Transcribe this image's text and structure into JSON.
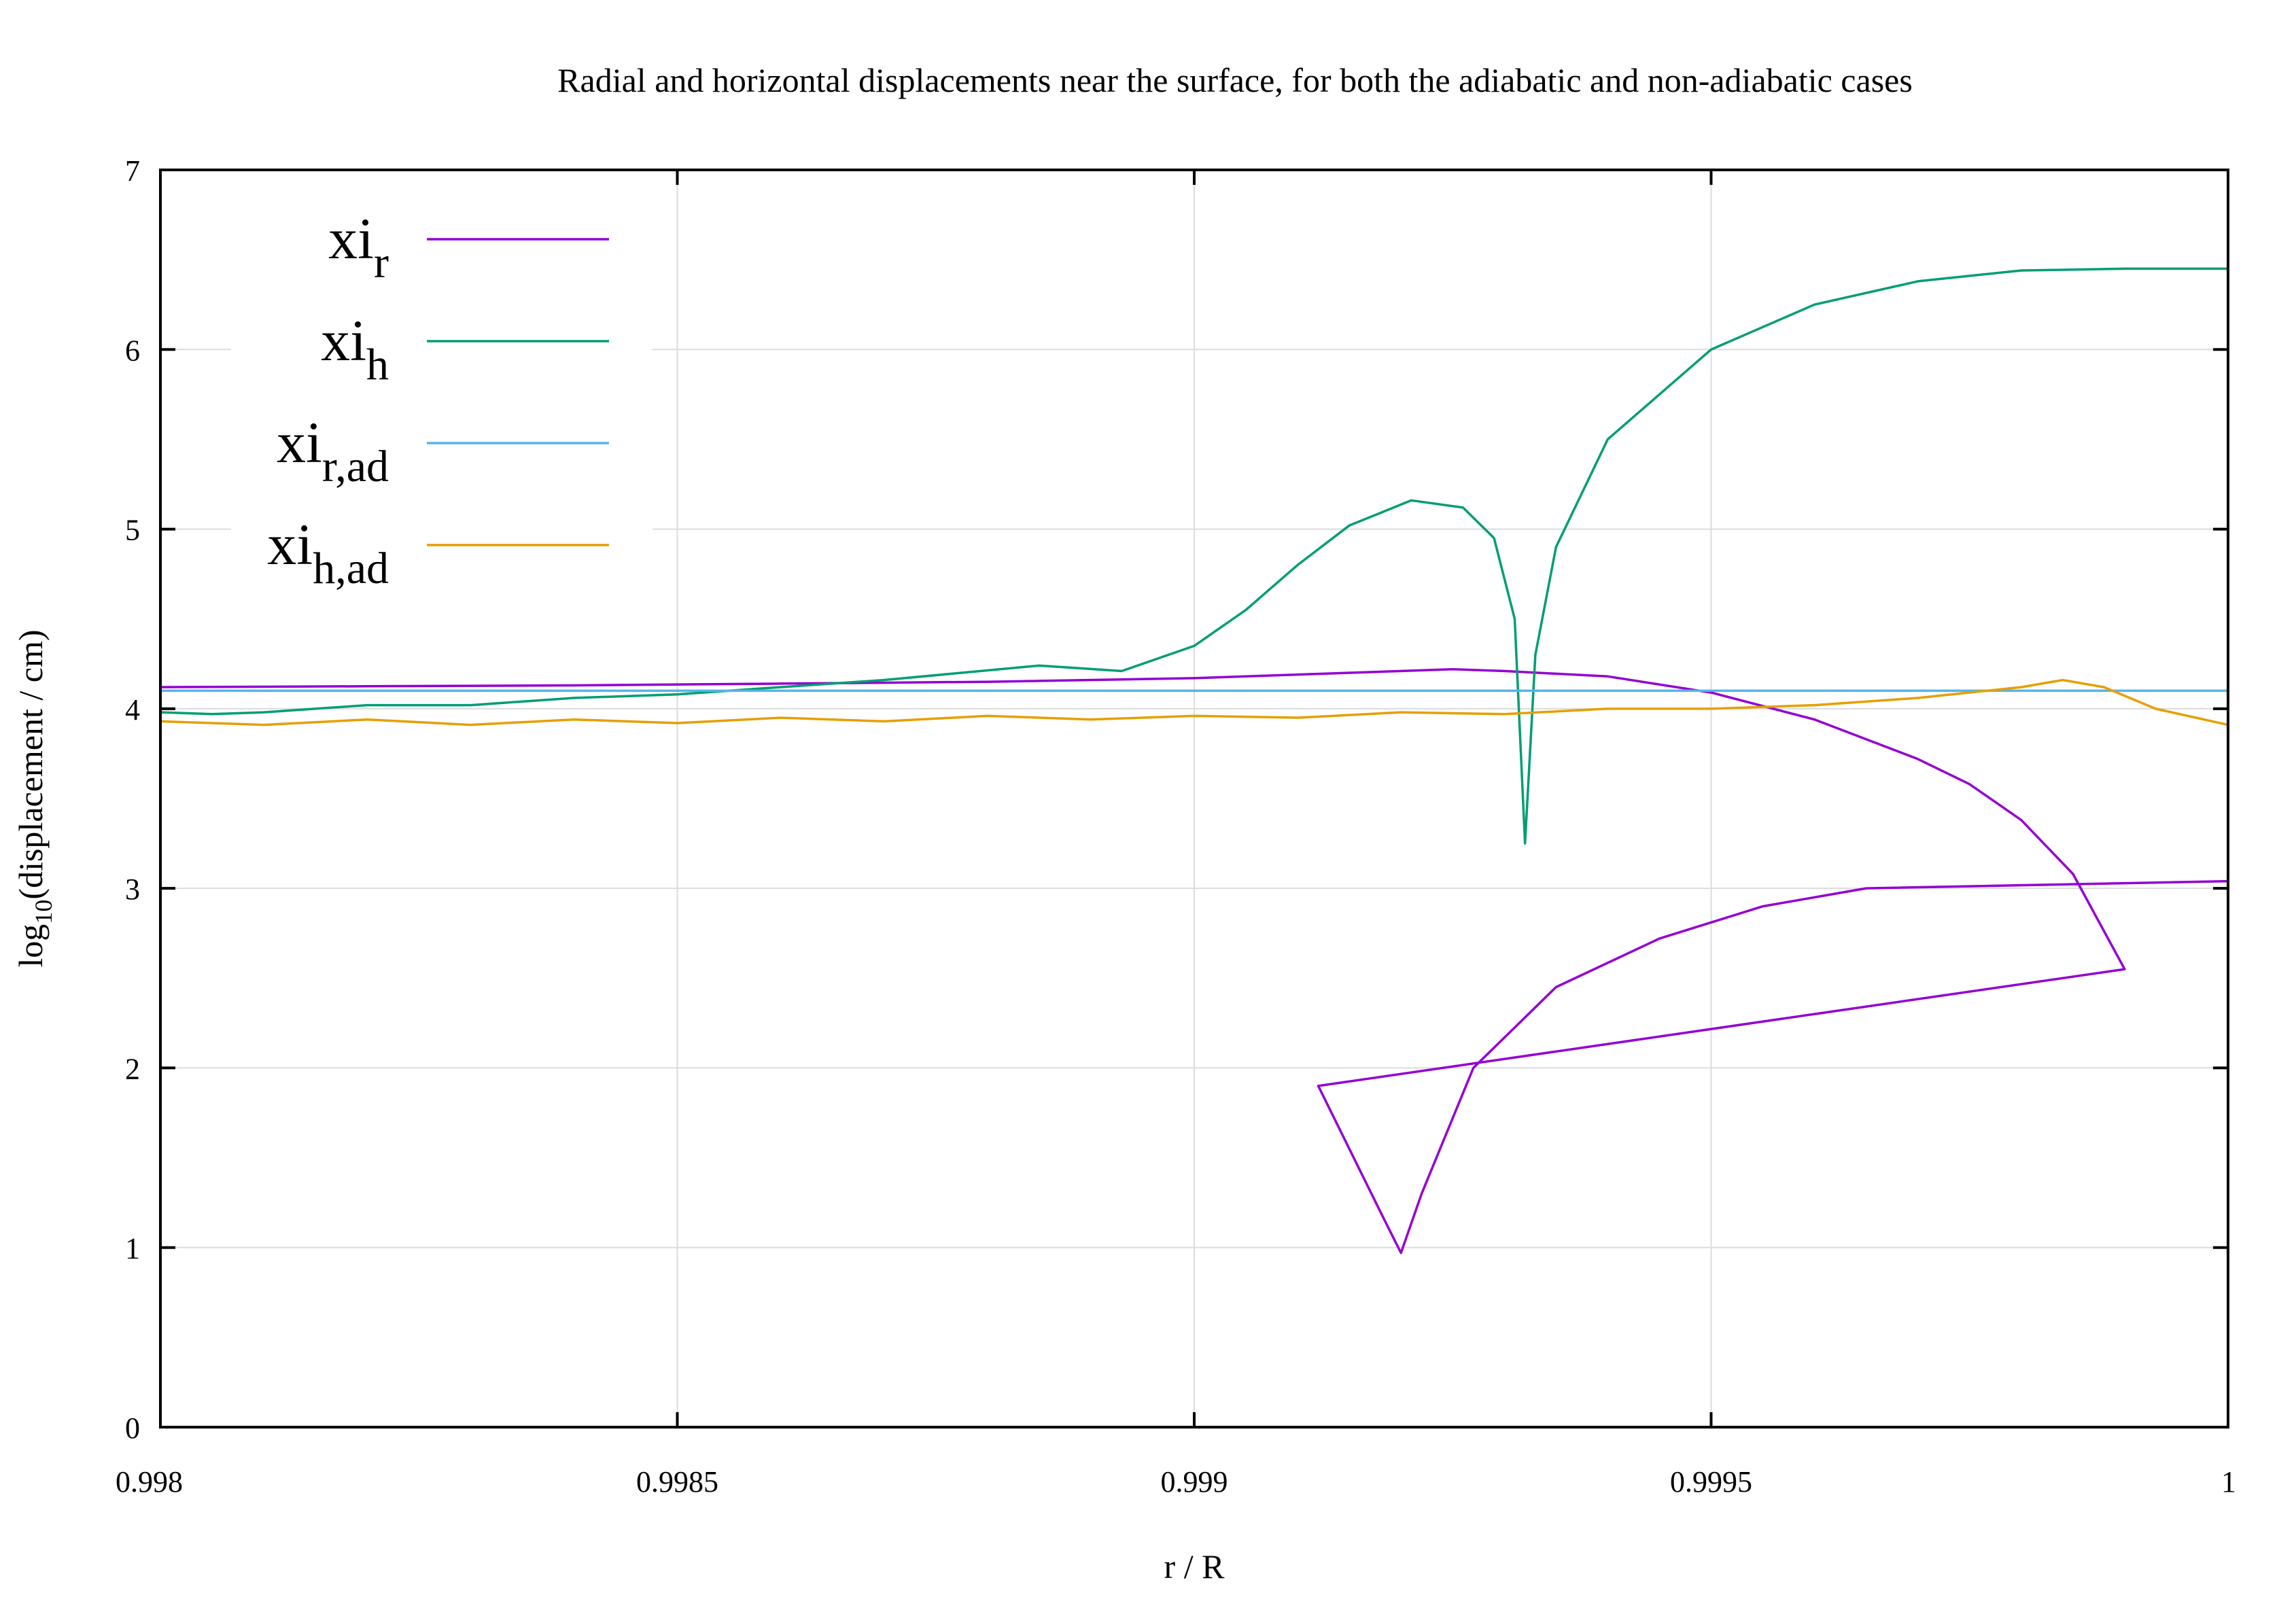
{
  "chart_data": {
    "type": "line",
    "title": "Radial and horizontal displacements near the surface, for both the adiabatic and non-adiabatic cases",
    "xlabel": "r / R",
    "ylabel": {
      "main": "log",
      "sub": "10",
      "rest": "(displacement / cm)"
    },
    "xlim": [
      0.998,
      1.0
    ],
    "ylim": [
      0,
      7
    ],
    "xticks": [
      {
        "value": 0.998,
        "label": "0.998"
      },
      {
        "value": 0.9985,
        "label": "0.9985"
      },
      {
        "value": 0.999,
        "label": "0.999"
      },
      {
        "value": 0.9995,
        "label": "0.9995"
      },
      {
        "value": 1.0,
        "label": "1"
      }
    ],
    "yticks": [
      {
        "value": 0,
        "label": "0"
      },
      {
        "value": 1,
        "label": "1"
      },
      {
        "value": 2,
        "label": "2"
      },
      {
        "value": 3,
        "label": "3"
      },
      {
        "value": 4,
        "label": "4"
      },
      {
        "value": 5,
        "label": "5"
      },
      {
        "value": 6,
        "label": "6"
      },
      {
        "value": 7,
        "label": "7"
      }
    ],
    "grid": true,
    "legend_position": "top-left",
    "series": [
      {
        "name": "xi_r",
        "label_main": "xi",
        "label_sub": "r",
        "color": "#9400d3",
        "points": [
          [
            0.998,
            4.12
          ],
          [
            0.9982,
            4.125
          ],
          [
            0.9984,
            4.13
          ],
          [
            0.9986,
            4.14
          ],
          [
            0.9988,
            4.15
          ],
          [
            0.999,
            4.17
          ],
          [
            0.9991,
            4.19
          ],
          [
            0.9992,
            4.21
          ],
          [
            0.99925,
            4.22
          ],
          [
            0.9993,
            4.21
          ],
          [
            0.9994,
            4.18
          ],
          [
            0.9995,
            4.09
          ],
          [
            0.9996,
            3.94
          ],
          [
            0.9997,
            3.72
          ],
          [
            0.99975,
            3.58
          ],
          [
            0.9998,
            3.38
          ],
          [
            0.99985,
            3.08
          ],
          [
            0.9999,
            2.55
          ],
          [
            0.99912,
            1.9
          ],
          [
            0.99918,
            1.2
          ],
          [
            0.9992,
            0.97
          ],
          [
            0.99922,
            1.3
          ],
          [
            0.99927,
            2.0
          ],
          [
            0.99935,
            2.45
          ],
          [
            0.99945,
            2.72
          ],
          [
            0.99955,
            2.9
          ],
          [
            0.99965,
            3.0
          ],
          [
            1.0,
            3.04
          ]
        ]
      },
      {
        "name": "xi_h",
        "label_main": "xi",
        "label_sub": "h",
        "color": "#009e73",
        "points": [
          [
            0.998,
            3.98
          ],
          [
            0.99805,
            3.97
          ],
          [
            0.9981,
            3.98
          ],
          [
            0.9982,
            4.02
          ],
          [
            0.9983,
            4.02
          ],
          [
            0.9984,
            4.06
          ],
          [
            0.9985,
            4.08
          ],
          [
            0.9986,
            4.12
          ],
          [
            0.9987,
            4.16
          ],
          [
            0.99885,
            4.24
          ],
          [
            0.99893,
            4.21
          ],
          [
            0.999,
            4.35
          ],
          [
            0.99905,
            4.55
          ],
          [
            0.9991,
            4.8
          ],
          [
            0.99915,
            5.02
          ],
          [
            0.99921,
            5.16
          ],
          [
            0.99926,
            5.12
          ],
          [
            0.99929,
            4.95
          ],
          [
            0.99931,
            4.5
          ],
          [
            0.99932,
            3.25
          ],
          [
            0.99933,
            4.3
          ],
          [
            0.99935,
            4.9
          ],
          [
            0.9994,
            5.5
          ],
          [
            0.9995,
            6.0
          ],
          [
            0.9996,
            6.25
          ],
          [
            0.9997,
            6.38
          ],
          [
            0.9998,
            6.44
          ],
          [
            0.9999,
            6.45
          ],
          [
            1.0,
            6.45
          ]
        ]
      },
      {
        "name": "xi_r,ad",
        "label_main": "xi",
        "label_sub": "r,ad",
        "color": "#56b4e9",
        "points": [
          [
            0.998,
            4.1
          ],
          [
            0.9985,
            4.1
          ],
          [
            0.999,
            4.1
          ],
          [
            0.9995,
            4.1
          ],
          [
            1.0,
            4.1
          ]
        ]
      },
      {
        "name": "xi_h,ad",
        "label_main": "xi",
        "label_sub": "h,ad",
        "color": "#e69f00",
        "points": [
          [
            0.998,
            3.93
          ],
          [
            0.9981,
            3.91
          ],
          [
            0.9982,
            3.94
          ],
          [
            0.9983,
            3.91
          ],
          [
            0.9984,
            3.94
          ],
          [
            0.9985,
            3.92
          ],
          [
            0.9986,
            3.95
          ],
          [
            0.9987,
            3.93
          ],
          [
            0.9988,
            3.96
          ],
          [
            0.9989,
            3.94
          ],
          [
            0.999,
            3.96
          ],
          [
            0.9991,
            3.95
          ],
          [
            0.9992,
            3.98
          ],
          [
            0.9993,
            3.97
          ],
          [
            0.9994,
            4.0
          ],
          [
            0.9995,
            4.0
          ],
          [
            0.9996,
            4.02
          ],
          [
            0.9997,
            4.06
          ],
          [
            0.9998,
            4.12
          ],
          [
            0.99984,
            4.16
          ],
          [
            0.99988,
            4.12
          ],
          [
            0.99993,
            4.0
          ],
          [
            1.0,
            3.91
          ]
        ]
      }
    ]
  }
}
